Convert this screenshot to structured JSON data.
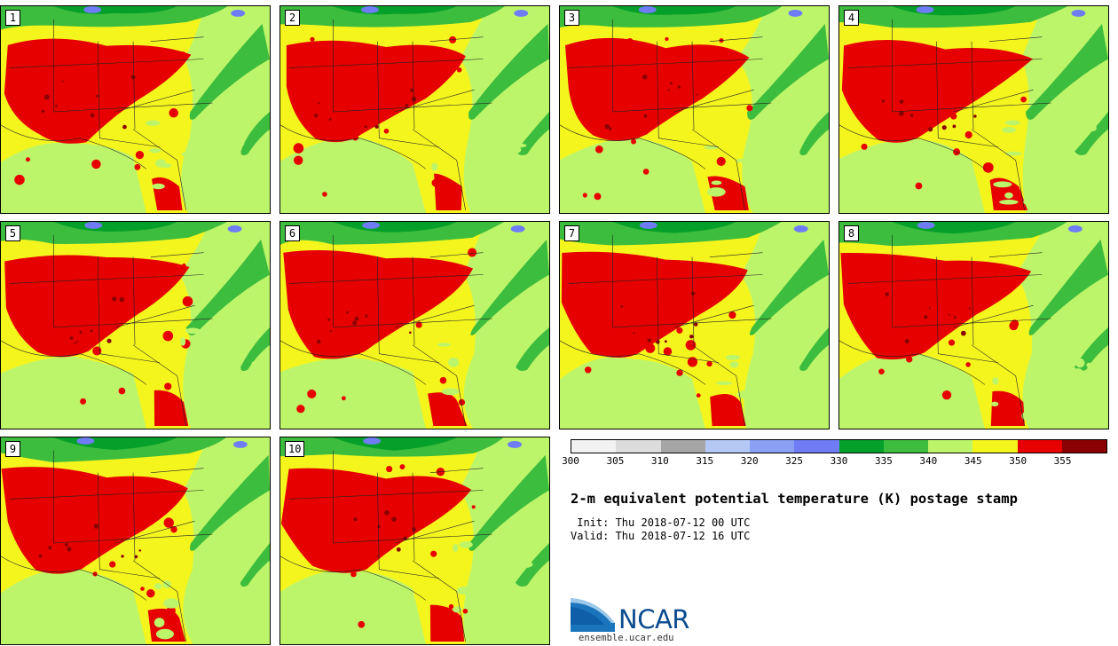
{
  "colors": {
    "sea": "#bdf56a",
    "land_base": "#f5f51e",
    "hot": "#e60000",
    "very_hot": "#8b0000",
    "green_dark": "#05a02a",
    "green_mid": "#3dbd3d",
    "lake": "#6f7cf5"
  },
  "stamps": [
    {
      "label": "1"
    },
    {
      "label": "2"
    },
    {
      "label": "3"
    },
    {
      "label": "4"
    },
    {
      "label": "5"
    },
    {
      "label": "6"
    },
    {
      "label": "7"
    },
    {
      "label": "8"
    },
    {
      "label": "9"
    },
    {
      "label": "10"
    }
  ],
  "colorbar": {
    "colors": [
      "#f2f2f2",
      "#dcdcdc",
      "#a6a6a6",
      "#b4c8f5",
      "#8aa0f5",
      "#6f7cf5",
      "#05a02a",
      "#3dbd3d",
      "#bdf56a",
      "#f5f51e",
      "#e60000",
      "#8b0000"
    ],
    "ticks": [
      "300",
      "305",
      "310",
      "315",
      "320",
      "325",
      "330",
      "335",
      "340",
      "345",
      "350",
      "355"
    ]
  },
  "title": "2-m equivalent potential temperature (K) postage stamp",
  "init_text": " Init: Thu 2018-07-12 00 UTC",
  "valid_text": "Valid: Thu 2018-07-12 16 UTC",
  "logo": {
    "name": "NCAR",
    "url": "ensemble.ucar.edu"
  }
}
